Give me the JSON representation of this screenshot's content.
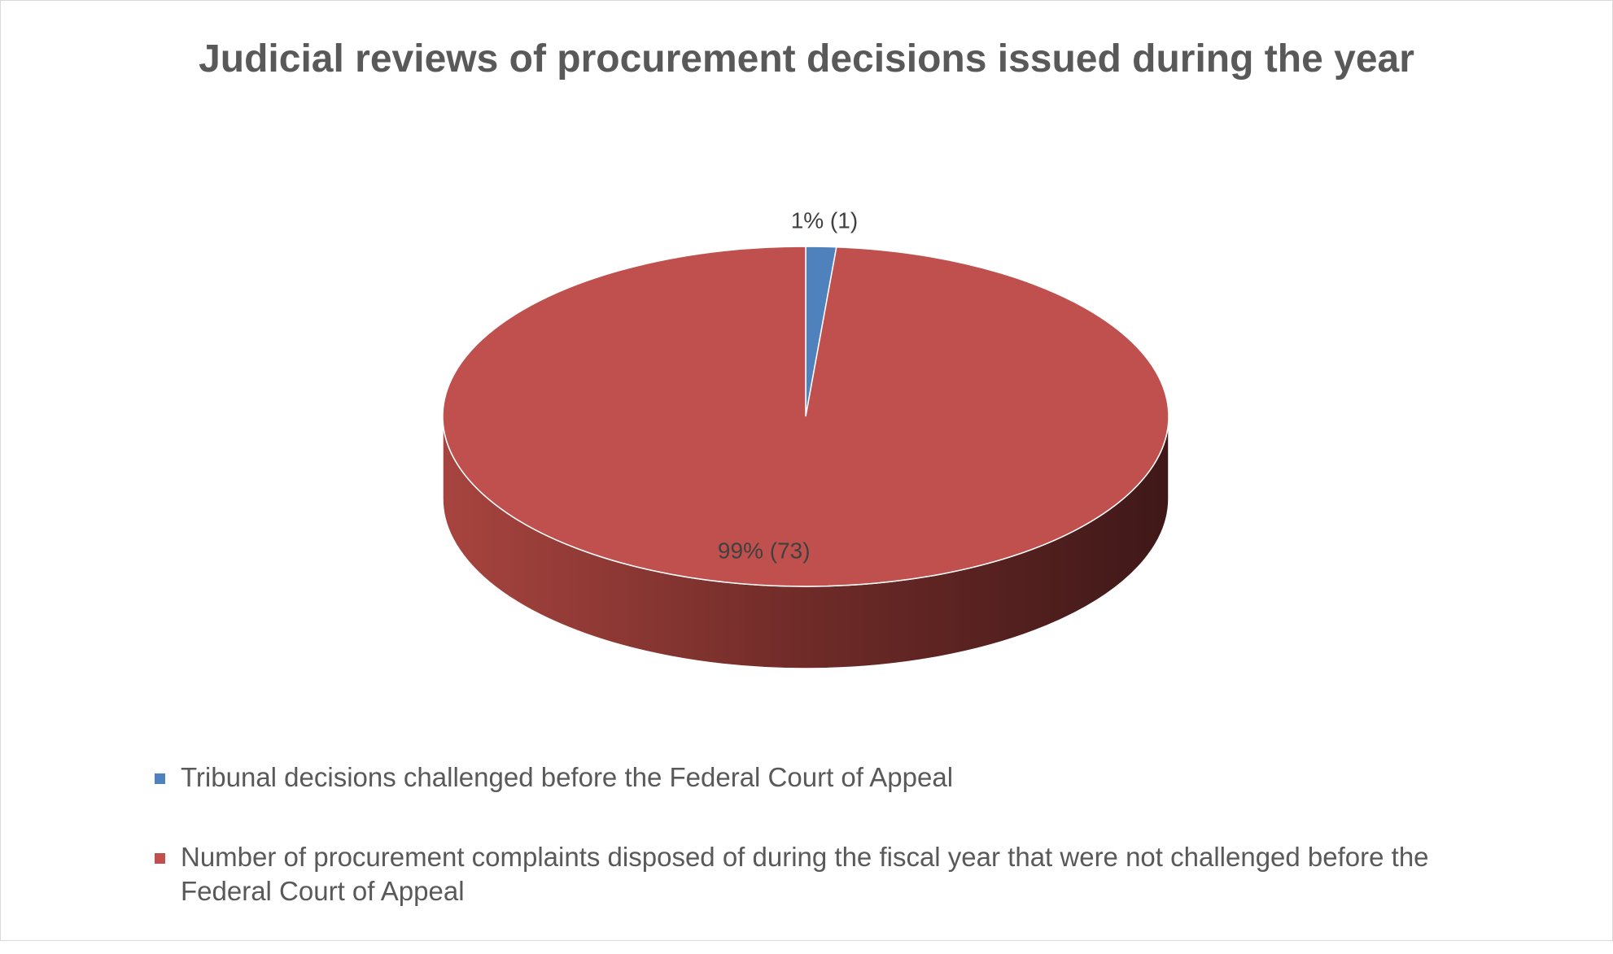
{
  "chart_data": {
    "type": "pie",
    "title": "Judicial reviews of procurement decisions issued during the year",
    "categories": [
      "Tribunal decisions challenged before the Federal Court of Appeal",
      "Number of procurement complaints disposed of during the fiscal year that were not challenged before the Federal Court of Appeal"
    ],
    "values": [
      1,
      73
    ],
    "value_labels": [
      "1% (1)",
      "99% (73)"
    ],
    "colors": [
      "#4f81bd",
      "#c0504d"
    ],
    "legend": "bottom"
  }
}
